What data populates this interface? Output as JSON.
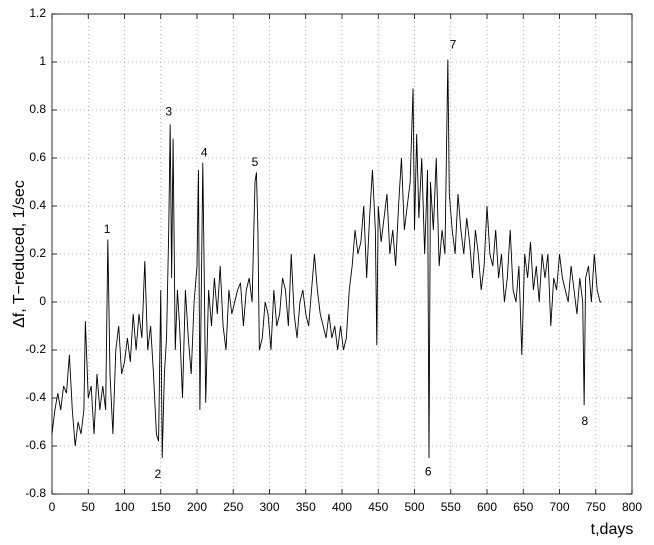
{
  "chart_data": {
    "type": "line",
    "x_label": "t,days",
    "y_label": "Δf, T−reduced, 1/sec",
    "xlim": [
      0,
      800
    ],
    "xticks": [
      0,
      50,
      100,
      150,
      200,
      250,
      300,
      350,
      400,
      450,
      500,
      550,
      600,
      650,
      700,
      750,
      800
    ],
    "ylim": [
      -0.8,
      1.2
    ],
    "yticks": [
      -0.8,
      -0.6,
      -0.4,
      -0.2,
      0,
      0.2,
      0.4,
      0.6,
      0.8,
      1,
      1.2
    ],
    "grid": true,
    "series": [
      {
        "color": "#000000",
        "x": [
          0,
          4,
          8,
          12,
          16,
          20,
          24,
          28,
          32,
          36,
          40,
          44,
          46,
          50,
          54,
          58,
          62,
          66,
          70,
          74,
          77,
          80,
          84,
          88,
          92,
          96,
          100,
          104,
          108,
          112,
          116,
          120,
          124,
          128,
          132,
          136,
          140,
          144,
          147,
          150,
          152,
          155,
          158,
          161,
          163,
          165,
          167,
          170,
          173,
          176,
          180,
          184,
          188,
          192,
          196,
          200,
          202,
          204,
          208,
          210,
          212,
          216,
          220,
          224,
          228,
          232,
          236,
          240,
          244,
          248,
          252,
          256,
          260,
          264,
          268,
          272,
          276,
          280,
          282,
          284,
          286,
          290,
          294,
          298,
          302,
          306,
          310,
          314,
          318,
          322,
          326,
          330,
          334,
          338,
          342,
          346,
          350,
          354,
          358,
          362,
          366,
          370,
          374,
          378,
          382,
          386,
          390,
          394,
          398,
          402,
          406,
          410,
          414,
          418,
          422,
          426,
          430,
          434,
          438,
          442,
          446,
          448,
          450,
          454,
          458,
          462,
          466,
          470,
          474,
          478,
          482,
          486,
          490,
          494,
          498,
          500,
          503,
          506,
          510,
          514,
          518,
          520,
          522,
          526,
          530,
          534,
          538,
          542,
          546,
          548,
          552,
          556,
          560,
          564,
          568,
          572,
          576,
          580,
          584,
          588,
          592,
          596,
          600,
          604,
          608,
          612,
          616,
          620,
          624,
          628,
          632,
          636,
          640,
          644,
          648,
          652,
          656,
          660,
          664,
          668,
          672,
          676,
          680,
          684,
          688,
          692,
          696,
          700,
          704,
          708,
          712,
          716,
          720,
          724,
          728,
          732,
          734,
          736,
          740,
          744,
          748,
          752,
          756,
          758
        ],
        "values": [
          -0.55,
          -0.45,
          -0.38,
          -0.45,
          -0.35,
          -0.38,
          -0.22,
          -0.45,
          -0.6,
          -0.5,
          -0.55,
          -0.45,
          -0.08,
          -0.4,
          -0.35,
          -0.55,
          -0.3,
          -0.45,
          -0.35,
          -0.45,
          0.26,
          -0.3,
          -0.55,
          -0.2,
          -0.1,
          -0.3,
          -0.25,
          -0.15,
          -0.25,
          -0.05,
          -0.2,
          -0.05,
          -0.15,
          0.17,
          -0.2,
          -0.1,
          -0.3,
          -0.55,
          -0.58,
          0.05,
          -0.65,
          -0.3,
          -0.15,
          0.3,
          0.74,
          0.1,
          0.68,
          -0.2,
          0.05,
          -0.1,
          -0.4,
          0.05,
          -0.15,
          -0.3,
          0,
          0.15,
          0.55,
          -0.45,
          0.58,
          0.1,
          -0.42,
          0.05,
          -0.1,
          0.1,
          -0.05,
          0.15,
          -0.1,
          -0.2,
          0.05,
          -0.05,
          0,
          0.05,
          0.08,
          -0.1,
          0.05,
          0.1,
          0,
          0.5,
          0.54,
          0.3,
          -0.2,
          -0.15,
          0,
          -0.05,
          -0.2,
          0.05,
          -0.1,
          -0.05,
          0.1,
          0.05,
          -0.1,
          0.2,
          -0.05,
          -0.15,
          0,
          0.05,
          -0.05,
          -0.1,
          0.05,
          0.2,
          0.05,
          -0.05,
          -0.1,
          -0.15,
          -0.05,
          -0.15,
          -0.1,
          -0.2,
          -0.1,
          -0.2,
          -0.15,
          0.05,
          0.15,
          0.3,
          0.2,
          0.25,
          0.4,
          0.1,
          0.35,
          0.55,
          0.3,
          -0.18,
          0.4,
          0.25,
          0.35,
          0.45,
          0.2,
          0.3,
          0.15,
          0.4,
          0.6,
          0.3,
          0.4,
          0.5,
          0.89,
          0.3,
          0.7,
          0.35,
          0.6,
          0.2,
          0.55,
          -0.65,
          0.5,
          0.3,
          0.6,
          0.15,
          0.3,
          0.2,
          1.01,
          0.45,
          0.3,
          0.2,
          0.45,
          0.3,
          0.2,
          0.35,
          0.25,
          0.1,
          0.3,
          0.2,
          0.05,
          0.15,
          0.4,
          0.2,
          0.15,
          0.3,
          0.1,
          0.2,
          0,
          0.1,
          0.3,
          0.05,
          0,
          0.15,
          -0.22,
          0.2,
          0.1,
          0.25,
          0.05,
          0.15,
          0,
          0.2,
          0.1,
          0.2,
          -0.1,
          0.1,
          0.05,
          0.2,
          0.1,
          0.05,
          0,
          0.15,
          0.05,
          -0.05,
          0.1,
          0,
          -0.43,
          0.1,
          0.15,
          0,
          0.2,
          0.05,
          0,
          0
        ]
      }
    ],
    "annotations": [
      {
        "text": "1",
        "x": 76,
        "y": 0.3
      },
      {
        "text": "2",
        "x": 146,
        "y": -0.72
      },
      {
        "text": "3",
        "x": 161,
        "y": 0.79
      },
      {
        "text": "4",
        "x": 210,
        "y": 0.62
      },
      {
        "text": "5",
        "x": 280,
        "y": 0.58
      },
      {
        "text": "6",
        "x": 519,
        "y": -0.71
      },
      {
        "text": "7",
        "x": 553,
        "y": 1.07
      },
      {
        "text": "8",
        "x": 735,
        "y": -0.5
      }
    ]
  }
}
